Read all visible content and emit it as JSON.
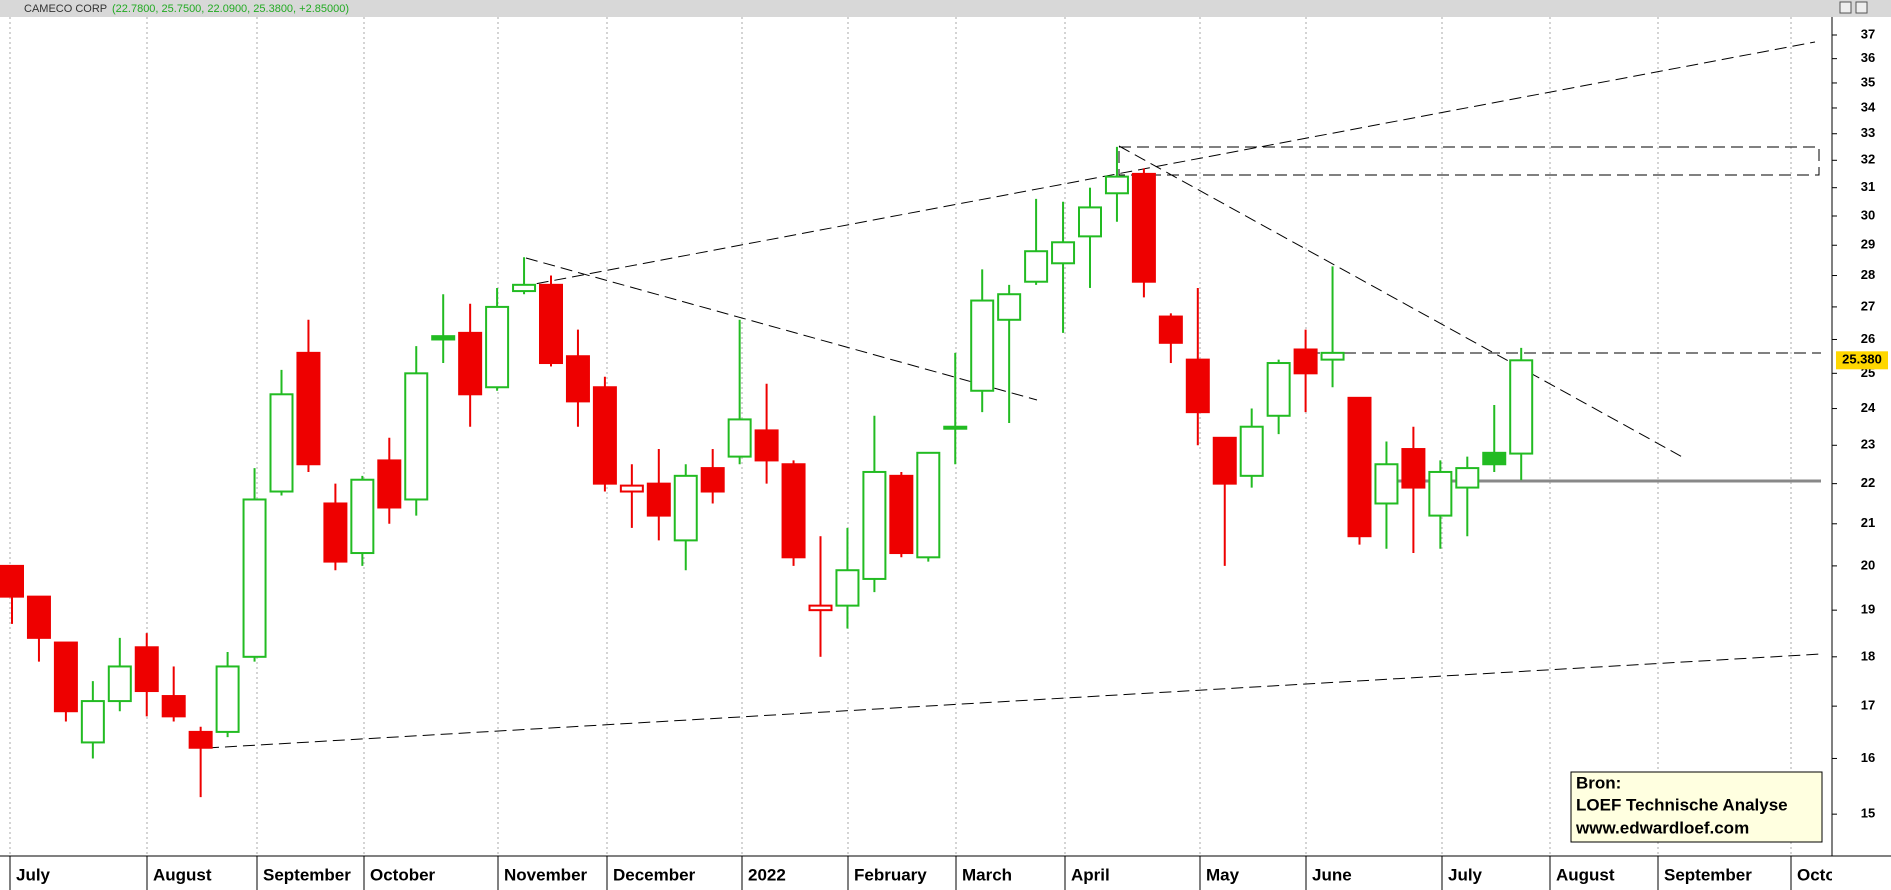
{
  "chart_data": {
    "type": "candlestick",
    "title": "CAMECO CORP",
    "subtitle": "(22.7800, 25.7500, 22.0900, 25.3800, +2.85000)",
    "months": [
      "July",
      "August",
      "September",
      "October",
      "November",
      "December",
      "2022",
      "February",
      "March",
      "April",
      "May",
      "June",
      "July",
      "August",
      "September",
      "October"
    ],
    "series": [
      {
        "open": [
          20.0,
          19.3,
          18.3,
          16.3,
          17.1,
          18.2,
          17.2,
          16.5,
          16.5,
          18.0,
          21.8,
          25.6,
          21.5,
          20.3,
          22.6,
          21.6,
          26.1,
          26.2,
          24.6,
          27.5,
          27.7,
          25.5,
          24.6,
          21.8,
          22.0,
          20.6,
          22.4,
          22.7,
          23.4,
          22.5,
          19.0,
          19.1,
          19.7,
          22.2,
          20.2,
          23.5,
          24.5,
          26.6,
          27.8,
          28.4,
          29.3,
          30.8,
          31.5,
          26.7,
          25.4,
          23.2,
          22.2,
          23.8,
          25.7,
          25.4,
          24.3,
          21.5,
          22.9,
          21.2,
          21.9,
          22.8,
          22.78
        ],
        "high": [
          20.0,
          19.3,
          18.3,
          17.5,
          18.4,
          18.5,
          17.8,
          16.6,
          18.1,
          22.4,
          25.1,
          26.6,
          22.0,
          22.2,
          23.2,
          25.8,
          27.4,
          27.1,
          27.6,
          28.6,
          28.0,
          26.3,
          24.9,
          22.5,
          22.9,
          22.5,
          22.9,
          26.6,
          24.7,
          22.6,
          20.7,
          20.9,
          23.8,
          22.3,
          22.8,
          25.6,
          28.2,
          27.7,
          30.6,
          30.5,
          31.0,
          32.5,
          31.7,
          26.8,
          27.6,
          23.2,
          24.0,
          25.4,
          26.3,
          28.3,
          24.3,
          23.1,
          23.5,
          22.6,
          22.7,
          24.1,
          25.75
        ],
        "low": [
          18.7,
          17.9,
          16.7,
          16.0,
          16.9,
          16.8,
          16.7,
          15.3,
          16.4,
          17.9,
          21.7,
          22.3,
          19.9,
          20.0,
          21.0,
          21.2,
          25.3,
          23.5,
          24.5,
          27.4,
          25.2,
          23.5,
          21.8,
          20.9,
          20.6,
          19.9,
          21.5,
          22.5,
          22.0,
          20.0,
          18.0,
          18.6,
          19.4,
          20.2,
          20.1,
          22.5,
          23.9,
          23.6,
          27.7,
          26.2,
          27.6,
          29.8,
          27.3,
          25.3,
          23.0,
          20.0,
          21.9,
          23.3,
          23.9,
          24.6,
          20.5,
          20.4,
          20.3,
          20.4,
          20.7,
          22.3,
          22.09
        ],
        "close": [
          19.3,
          18.4,
          16.9,
          17.1,
          17.8,
          17.3,
          16.8,
          16.2,
          17.8,
          21.6,
          24.4,
          22.5,
          20.1,
          22.1,
          21.4,
          25.0,
          26.0,
          24.4,
          27.0,
          27.7,
          25.3,
          24.2,
          22.0,
          21.95,
          21.2,
          22.2,
          21.8,
          23.7,
          22.6,
          20.2,
          19.1,
          19.9,
          22.3,
          20.3,
          22.8,
          23.5,
          27.2,
          27.4,
          28.8,
          29.1,
          30.3,
          31.4,
          27.8,
          25.9,
          23.9,
          22.0,
          23.5,
          25.3,
          25.0,
          25.6,
          20.7,
          22.5,
          21.9,
          22.3,
          22.4,
          22.5,
          25.38
        ]
      }
    ],
    "up_color": "#22bb22",
    "down_color": "#ee0000",
    "log_scale": true,
    "ylim": [
      14.29,
      37.78
    ],
    "yticks": [
      15,
      16,
      17,
      18,
      19,
      20,
      21,
      22,
      23,
      24,
      25,
      26,
      27,
      28,
      29,
      30,
      31,
      32,
      33,
      34,
      35,
      36,
      37
    ],
    "last_label": "25.380",
    "annotation": [
      "Bron:",
      "LOEF Technische Analyse",
      "www.edwardloef.com"
    ]
  }
}
